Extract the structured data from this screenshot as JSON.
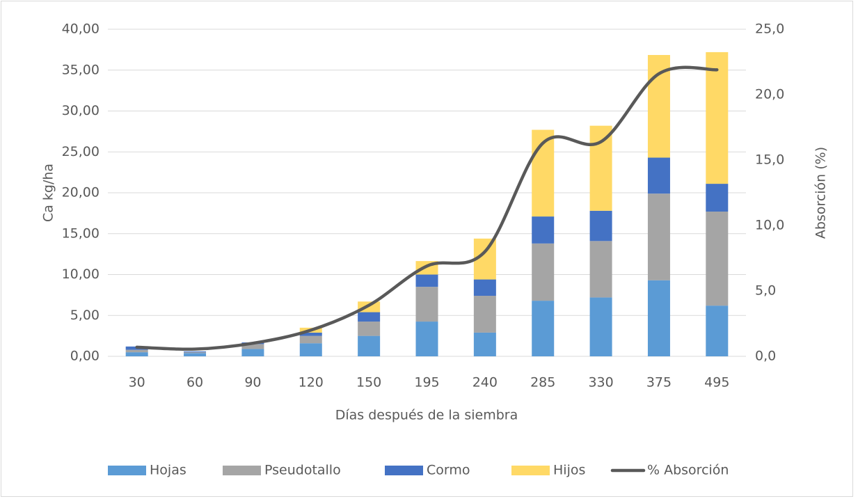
{
  "chart_data": {
    "type": "stacked_bar_line",
    "x_label": "Días después de la siembra",
    "y_label": "Ca  kg/ha",
    "y2_label": "Absorción  (%)",
    "categories": [
      "30",
      "60",
      "90",
      "120",
      "150",
      "195",
      "240",
      "285",
      "330",
      "375",
      "495"
    ],
    "series": [
      {
        "name": "Hojas",
        "color": "#5b9bd5",
        "values": [
          0.5,
          0.4,
          0.9,
          1.6,
          2.5,
          4.25,
          2.9,
          6.8,
          7.2,
          9.3,
          6.2
        ]
      },
      {
        "name": "Pseudotallo",
        "color": "#a5a5a5",
        "values": [
          0.3,
          0.1,
          0.6,
          0.9,
          1.75,
          4.25,
          4.5,
          7.0,
          6.9,
          10.6,
          11.5
        ]
      },
      {
        "name": "Cormo",
        "color": "#4472c4",
        "values": [
          0.4,
          0.1,
          0.2,
          0.4,
          1.15,
          1.5,
          2.0,
          3.3,
          3.7,
          4.4,
          3.4
        ]
      },
      {
        "name": "Hijos",
        "color": "#ffd966",
        "values": [
          0,
          0,
          0,
          0.6,
          1.3,
          1.65,
          5.0,
          10.6,
          10.4,
          12.55,
          16.1
        ]
      },
      {
        "name": "% Absorción",
        "color": "#595959",
        "axis": "y2",
        "values": [
          0.7,
          0.55,
          1.0,
          2.0,
          3.9,
          6.9,
          8.0,
          16.3,
          16.4,
          21.6,
          21.9
        ]
      }
    ],
    "ylim": [
      0,
      40
    ],
    "yticks": [
      {
        "value": 0,
        "label": "0,00"
      },
      {
        "value": 5,
        "label": "5,00"
      },
      {
        "value": 10,
        "label": "10,00"
      },
      {
        "value": 15,
        "label": "15,00"
      },
      {
        "value": 20,
        "label": "20,00"
      },
      {
        "value": 25,
        "label": "25,00"
      },
      {
        "value": 30,
        "label": "30,00"
      },
      {
        "value": 35,
        "label": "35,00"
      },
      {
        "value": 40,
        "label": "40,00"
      }
    ],
    "y2lim": [
      0,
      25
    ],
    "y2ticks": [
      {
        "value": 0,
        "label": "0,0"
      },
      {
        "value": 5,
        "label": "5,0"
      },
      {
        "value": 10,
        "label": "10,0"
      },
      {
        "value": 15,
        "label": "15,0"
      },
      {
        "value": 20,
        "label": "20,0"
      },
      {
        "value": 25,
        "label": "25,0"
      }
    ],
    "grid": true,
    "legend": "bottom"
  }
}
